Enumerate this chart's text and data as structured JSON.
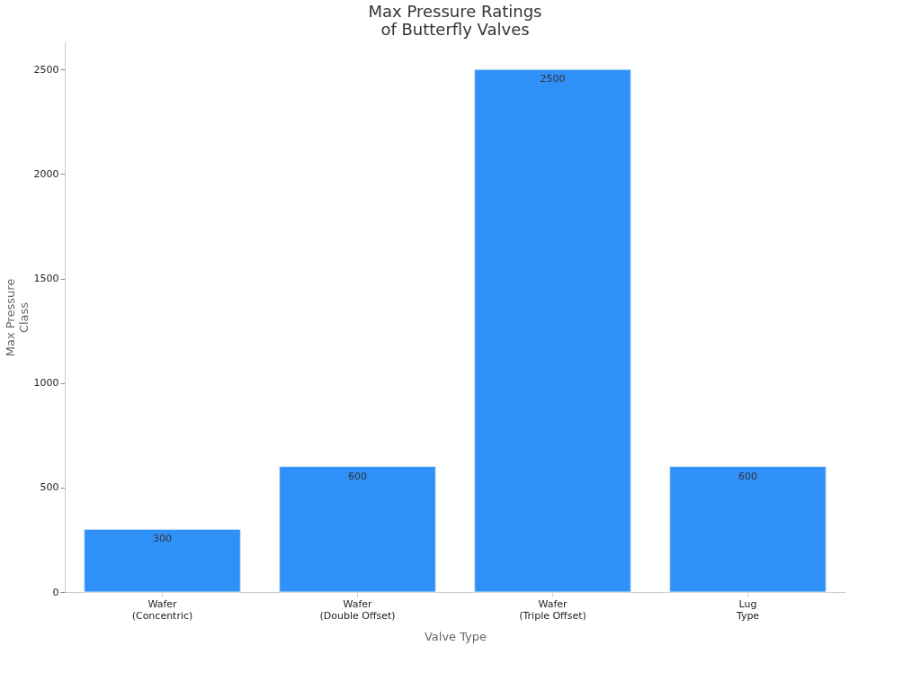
{
  "chart_data": {
    "type": "bar",
    "title": "Max Pressure Ratings\nof Butterfly Valves",
    "xlabel": "Valve Type",
    "ylabel": "Max Pressure\nClass",
    "categories": [
      "Wafer\n(Concentric)",
      "Wafer\n(Double Offset)",
      "Wafer\n(Triple Offset)",
      "Lug\nType"
    ],
    "values": [
      300,
      600,
      2500,
      600
    ],
    "color": "#2f91f8",
    "ylim": [
      0,
      2630
    ],
    "yticks": [
      0,
      500,
      1000,
      1500,
      2000,
      2500
    ],
    "grid": false,
    "data_labels": true
  }
}
